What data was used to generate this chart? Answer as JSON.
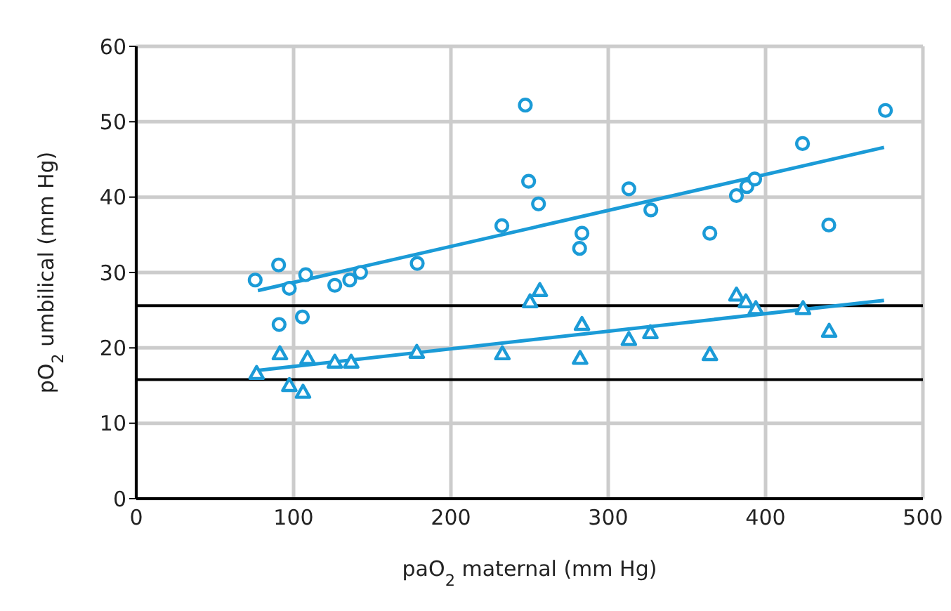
{
  "chart_data": {
    "type": "scatter",
    "xlabel": "paO$_{2}$ maternal (mm Hg)",
    "ylabel": "pO$_{2}$ umbilical (mm Hg)",
    "xlim": [
      0,
      500
    ],
    "xticks": [
      0,
      100,
      200,
      300,
      400,
      500
    ],
    "ylim": [
      0,
      60
    ],
    "yticks": [
      0,
      10,
      20,
      30,
      40,
      50,
      60
    ],
    "grid": true,
    "legend": false,
    "series": [
      {
        "marker": "circle",
        "color": "#1b9bd7",
        "x": [
          75.6,
          90.5,
          97.3,
          107.7,
          90.8,
          105.6,
          126.2,
          135.7,
          142.6,
          178.6,
          232.4,
          247.3,
          249.4,
          255.7,
          283.3,
          281.8,
          313.1,
          327.1,
          364.6,
          381.5,
          388.1,
          393.1,
          423.5,
          440.2,
          476.2
        ],
        "values": [
          29.0,
          31.0,
          27.9,
          29.7,
          23.1,
          24.1,
          28.3,
          29.0,
          30.0,
          31.2,
          36.2,
          52.2,
          42.1,
          39.1,
          35.2,
          33.2,
          41.1,
          38.3,
          35.2,
          40.2,
          41.4,
          42.4,
          47.1,
          36.3,
          51.5
        ]
      },
      {
        "marker": "triangle",
        "color": "#1b9bd7",
        "x": [
          76.5,
          91.3,
          97.3,
          106,
          108.9,
          126.2,
          136.6,
          178.3,
          232.7,
          250.3,
          256.5,
          283.3,
          282.1,
          313.1,
          326.8,
          364.6,
          381.5,
          387.5,
          393.8,
          423.8,
          440.4
        ],
        "values": [
          16.6,
          19.2,
          15.0,
          14.1,
          18.6,
          18.1,
          18.1,
          19.4,
          19.2,
          26.1,
          27.6,
          23.1,
          18.6,
          21.1,
          22.0,
          19.1,
          27.0,
          26.1,
          25.2,
          25.2,
          22.2
        ]
      },
      {
        "type": "line",
        "marker": "none",
        "color": "#1b9bd7",
        "x": [
          77.3,
          475.3
        ],
        "values": [
          27.6,
          46.6
        ]
      },
      {
        "type": "line",
        "marker": "none",
        "color": "#1b9bd7",
        "x": [
          77,
          475.3
        ],
        "values": [
          17.0,
          26.3
        ]
      }
    ],
    "ref_lines": [
      {
        "axis": "y",
        "value": 25.6,
        "color": "#000000"
      },
      {
        "axis": "y",
        "value": 15.8,
        "color": "#000000"
      }
    ]
  }
}
